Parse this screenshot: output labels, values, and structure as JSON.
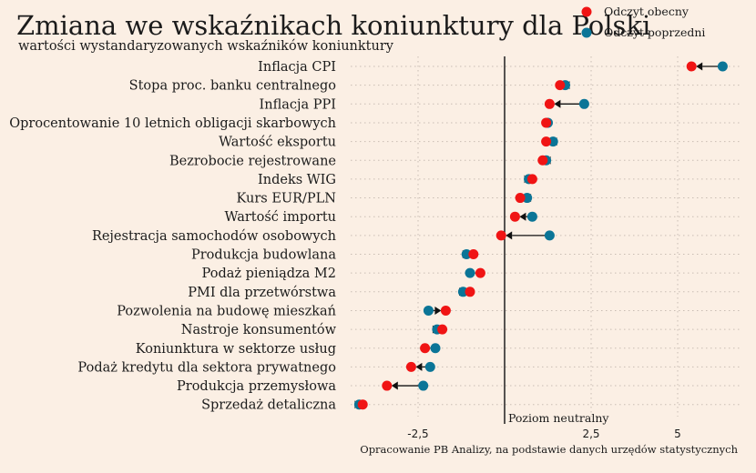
{
  "colors": {
    "background": "#fbefe4",
    "current": "#f01414",
    "previous": "#0b7597",
    "arrow": "#111111",
    "grid": "#c9bdb3"
  },
  "chart_data": {
    "type": "scatter",
    "title": "Zmiana we wskaźnikach koniunktury dla Polski",
    "subtitle": "wartości wystandaryzowanych wskaźników koniunktury",
    "source": "Opracowanie PB Analizy, na podstawie danych urzędów statystycznych",
    "neutral_label": "Poziom neutralny",
    "legend": {
      "position": "top-right",
      "current": "Odczyt obecny",
      "previous": "Odczyt poprzedni"
    },
    "xlim": [
      -4.2,
      6.8
    ],
    "xticks": [
      -2.5,
      2.5,
      5
    ],
    "xtick_labels": [
      "-2,5",
      "2,5",
      "5"
    ],
    "grid": true,
    "categories": [
      "Inflacja CPI",
      "Stopa proc. banku centralnego",
      "Inflacja PPI",
      "Oprocentowanie 10 letnich obligacji skarbowych",
      "Wartość eksportu",
      "Bezrobocie rejestrowane",
      "Indeks WIG",
      "Kurs EUR/PLN",
      "Wartość importu",
      "Rejestracja samochodów osobowych",
      "Produkcja budowlana",
      "Podaż pieniądza M2",
      "PMI dla przetwórstwa",
      "Pozwolenia na budowę mieszkań",
      "Nastroje konsumentów",
      "Koniunktura w sektorze usług",
      "Podaż kredytu dla sektora prywatnego",
      "Produkcja przemysłowa",
      "Sprzedaż detaliczna"
    ],
    "series": [
      {
        "name": "Odczyt obecny",
        "values": [
          5.4,
          1.6,
          1.3,
          1.2,
          1.2,
          1.1,
          0.8,
          0.45,
          0.3,
          -0.1,
          -0.9,
          -0.7,
          -1.0,
          -1.7,
          -1.8,
          -2.3,
          -2.7,
          -3.4,
          -4.1
        ]
      },
      {
        "name": "Odczyt poprzedni",
        "values": [
          6.3,
          1.75,
          2.3,
          1.25,
          1.4,
          1.2,
          0.7,
          0.65,
          0.8,
          1.3,
          -1.1,
          -1.0,
          -1.2,
          -2.2,
          -1.95,
          -2.0,
          -2.15,
          -2.35,
          -4.2
        ]
      }
    ]
  }
}
